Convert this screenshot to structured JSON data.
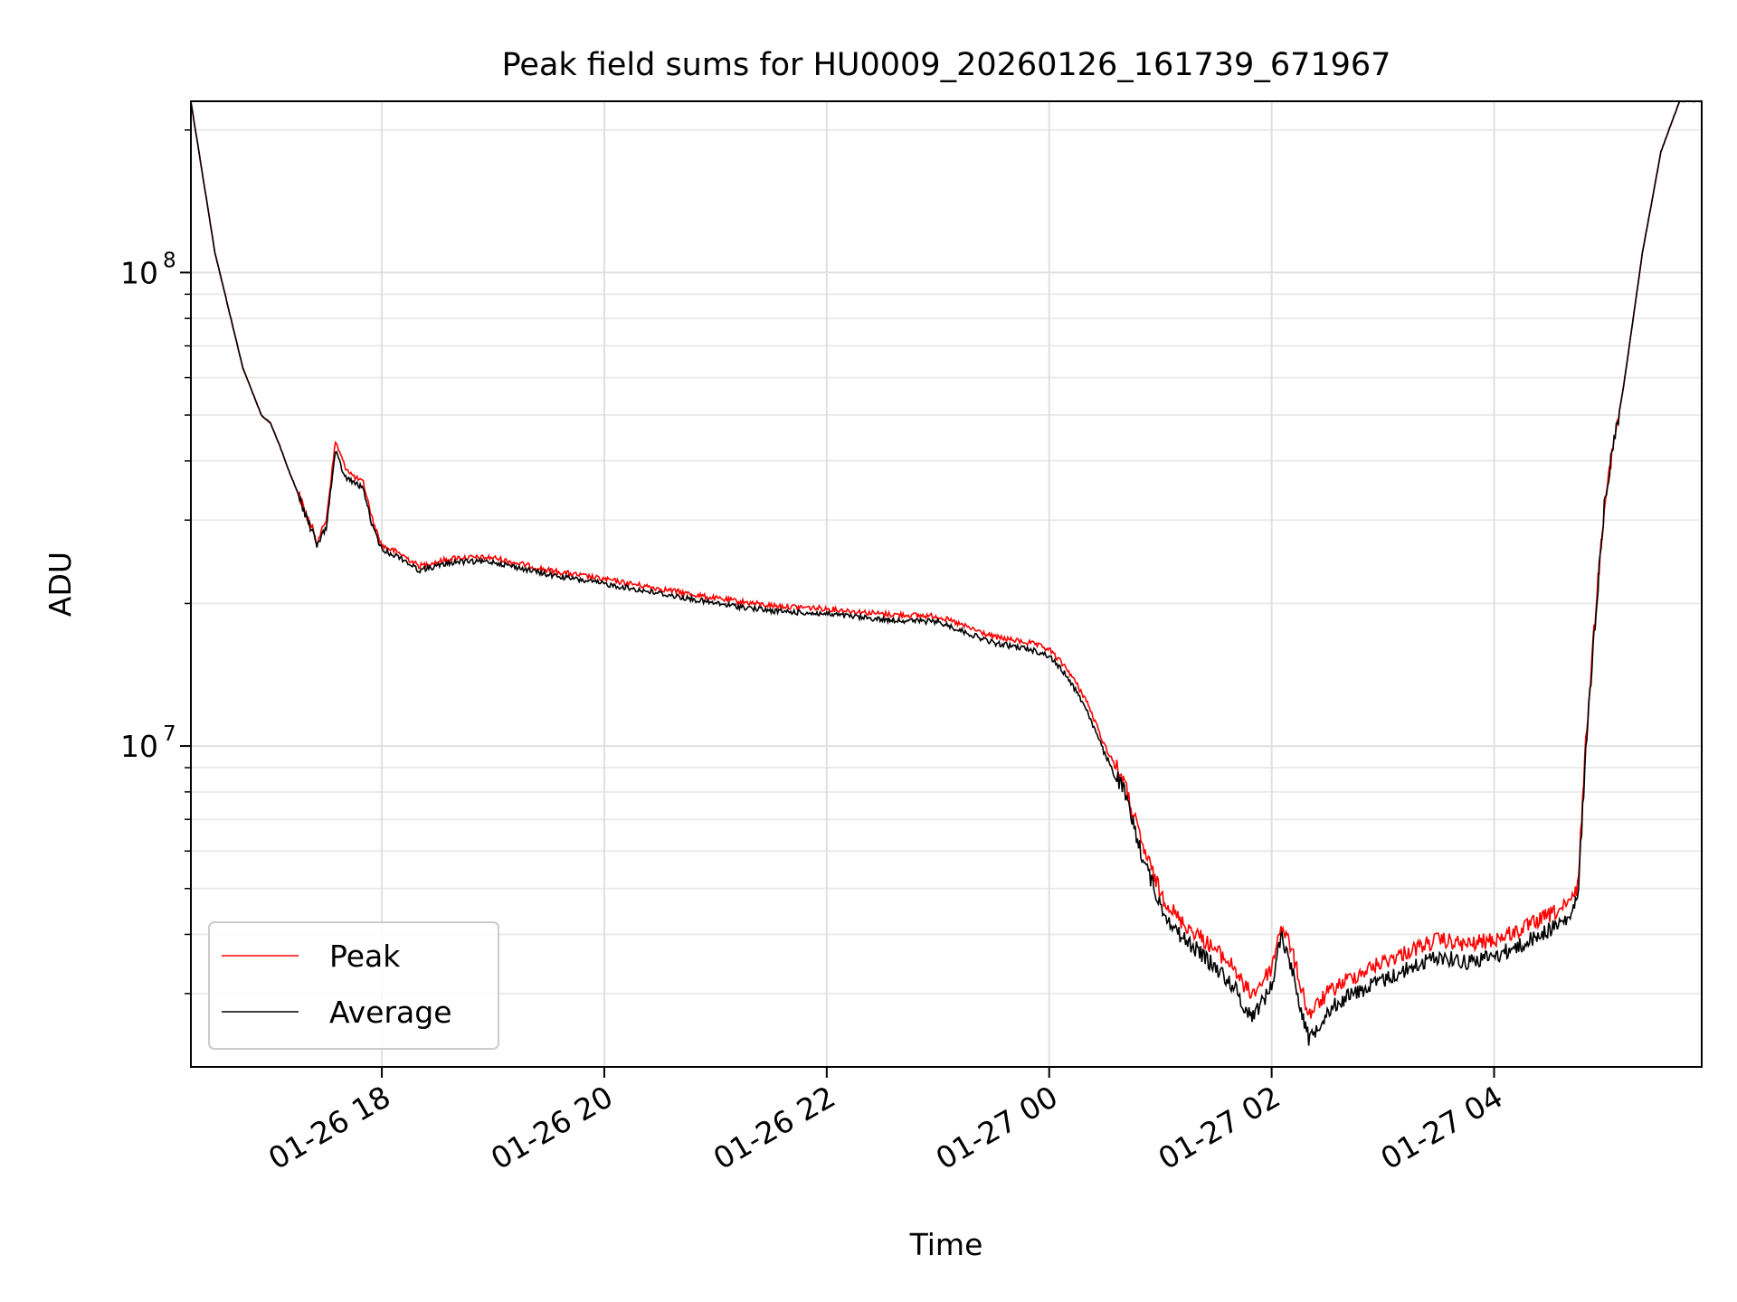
{
  "chart_data": {
    "type": "line",
    "title": "Peak field sums for HU0009_20260126_161739_671967",
    "xlabel": "Time",
    "ylabel": "ADU",
    "yscale": "log",
    "xlim": [
      "2026-01-26 16:17",
      "2026-01-27 05:52"
    ],
    "ylim": [
      2100000,
      230000000
    ],
    "grid": true,
    "legend_position": "lower-left",
    "x_ticks": [
      {
        "value": "2026-01-26 18:00",
        "label": "01-26 18"
      },
      {
        "value": "2026-01-26 20:00",
        "label": "01-26 20"
      },
      {
        "value": "2026-01-26 22:00",
        "label": "01-26 22"
      },
      {
        "value": "2026-01-27 00:00",
        "label": "01-27 00"
      },
      {
        "value": "2026-01-27 02:00",
        "label": "01-27 02"
      },
      {
        "value": "2026-01-27 04:00",
        "label": "01-27 04"
      }
    ],
    "y_ticks": [
      {
        "value": 10000000,
        "base": "10",
        "exp": "7"
      },
      {
        "value": 100000000,
        "base": "10",
        "exp": "8"
      }
    ],
    "x": [
      "2026-01-26 16:17",
      "2026-01-26 16:30",
      "2026-01-26 16:45",
      "2026-01-26 16:55",
      "2026-01-26 17:00",
      "2026-01-26 17:05",
      "2026-01-26 17:10",
      "2026-01-26 17:15",
      "2026-01-26 17:25",
      "2026-01-26 17:30",
      "2026-01-26 17:35",
      "2026-01-26 17:40",
      "2026-01-26 17:45",
      "2026-01-26 17:50",
      "2026-01-26 17:55",
      "2026-01-26 18:00",
      "2026-01-26 18:10",
      "2026-01-26 18:20",
      "2026-01-26 18:40",
      "2026-01-26 19:00",
      "2026-01-26 19:30",
      "2026-01-26 20:00",
      "2026-01-26 20:30",
      "2026-01-26 21:00",
      "2026-01-26 21:30",
      "2026-01-26 22:00",
      "2026-01-26 22:30",
      "2026-01-26 23:00",
      "2026-01-26 23:30",
      "2026-01-26 23:50",
      "2026-01-27 00:00",
      "2026-01-27 00:10",
      "2026-01-27 00:20",
      "2026-01-27 00:30",
      "2026-01-27 00:40",
      "2026-01-27 00:50",
      "2026-01-27 01:00",
      "2026-01-27 01:10",
      "2026-01-27 01:20",
      "2026-01-27 01:30",
      "2026-01-27 01:40",
      "2026-01-27 01:45",
      "2026-01-27 01:50",
      "2026-01-27 02:00",
      "2026-01-27 02:05",
      "2026-01-27 02:10",
      "2026-01-27 02:20",
      "2026-01-27 02:30",
      "2026-01-27 02:40",
      "2026-01-27 03:00",
      "2026-01-27 03:15",
      "2026-01-27 03:30",
      "2026-01-27 03:45",
      "2026-01-27 04:00",
      "2026-01-27 04:15",
      "2026-01-27 04:30",
      "2026-01-27 04:40",
      "2026-01-27 04:45",
      "2026-01-27 04:50",
      "2026-01-27 04:55",
      "2026-01-27 05:00",
      "2026-01-27 05:10",
      "2026-01-27 05:20",
      "2026-01-27 05:30",
      "2026-01-27 05:40",
      "2026-01-27 05:45",
      "2026-01-27 05:52"
    ],
    "series": [
      {
        "name": "Peak",
        "color": "#ff0000",
        "values": [
          230000000,
          110000000,
          63000000,
          50000000,
          48000000,
          43000000,
          38000000,
          34000000,
          27000000,
          30000000,
          44000000,
          39000000,
          37000000,
          36000000,
          30000000,
          26500000,
          25500000,
          24000000,
          25000000,
          25000000,
          23500000,
          22500000,
          21500000,
          20500000,
          19800000,
          19500000,
          19000000,
          18800000,
          17000000,
          16500000,
          16000000,
          14500000,
          12500000,
          10000000,
          8500000,
          6200000,
          4900000,
          4300000,
          4000000,
          3700000,
          3400000,
          3100000,
          3000000,
          3400000,
          4200000,
          3800000,
          2700000,
          3000000,
          3200000,
          3500000,
          3700000,
          3900000,
          3800000,
          3900000,
          4100000,
          4400000,
          4600000,
          5000000,
          11000000,
          20000000,
          34000000,
          58000000,
          110000000,
          180000000,
          230000000,
          230000000,
          230000000
        ]
      },
      {
        "name": "Average",
        "color": "#000000",
        "values": [
          230000000,
          110000000,
          63000000,
          50000000,
          48000000,
          43000000,
          38000000,
          34000000,
          26500000,
          29000000,
          42000000,
          37000000,
          36000000,
          35000000,
          29000000,
          26000000,
          25000000,
          23500000,
          24500000,
          24500000,
          23000000,
          22000000,
          21000000,
          20000000,
          19300000,
          19000000,
          18500000,
          18300000,
          16500000,
          16000000,
          15500000,
          14000000,
          12000000,
          9600000,
          8100000,
          5900000,
          4600000,
          4000000,
          3700000,
          3400000,
          3100000,
          2800000,
          2700000,
          3100000,
          4000000,
          3500000,
          2400000,
          2750000,
          2950000,
          3200000,
          3400000,
          3600000,
          3500000,
          3600000,
          3800000,
          4100000,
          4300000,
          4700000,
          10500000,
          19500000,
          34000000,
          58000000,
          110000000,
          180000000,
          230000000,
          230000000,
          230000000
        ]
      }
    ]
  }
}
